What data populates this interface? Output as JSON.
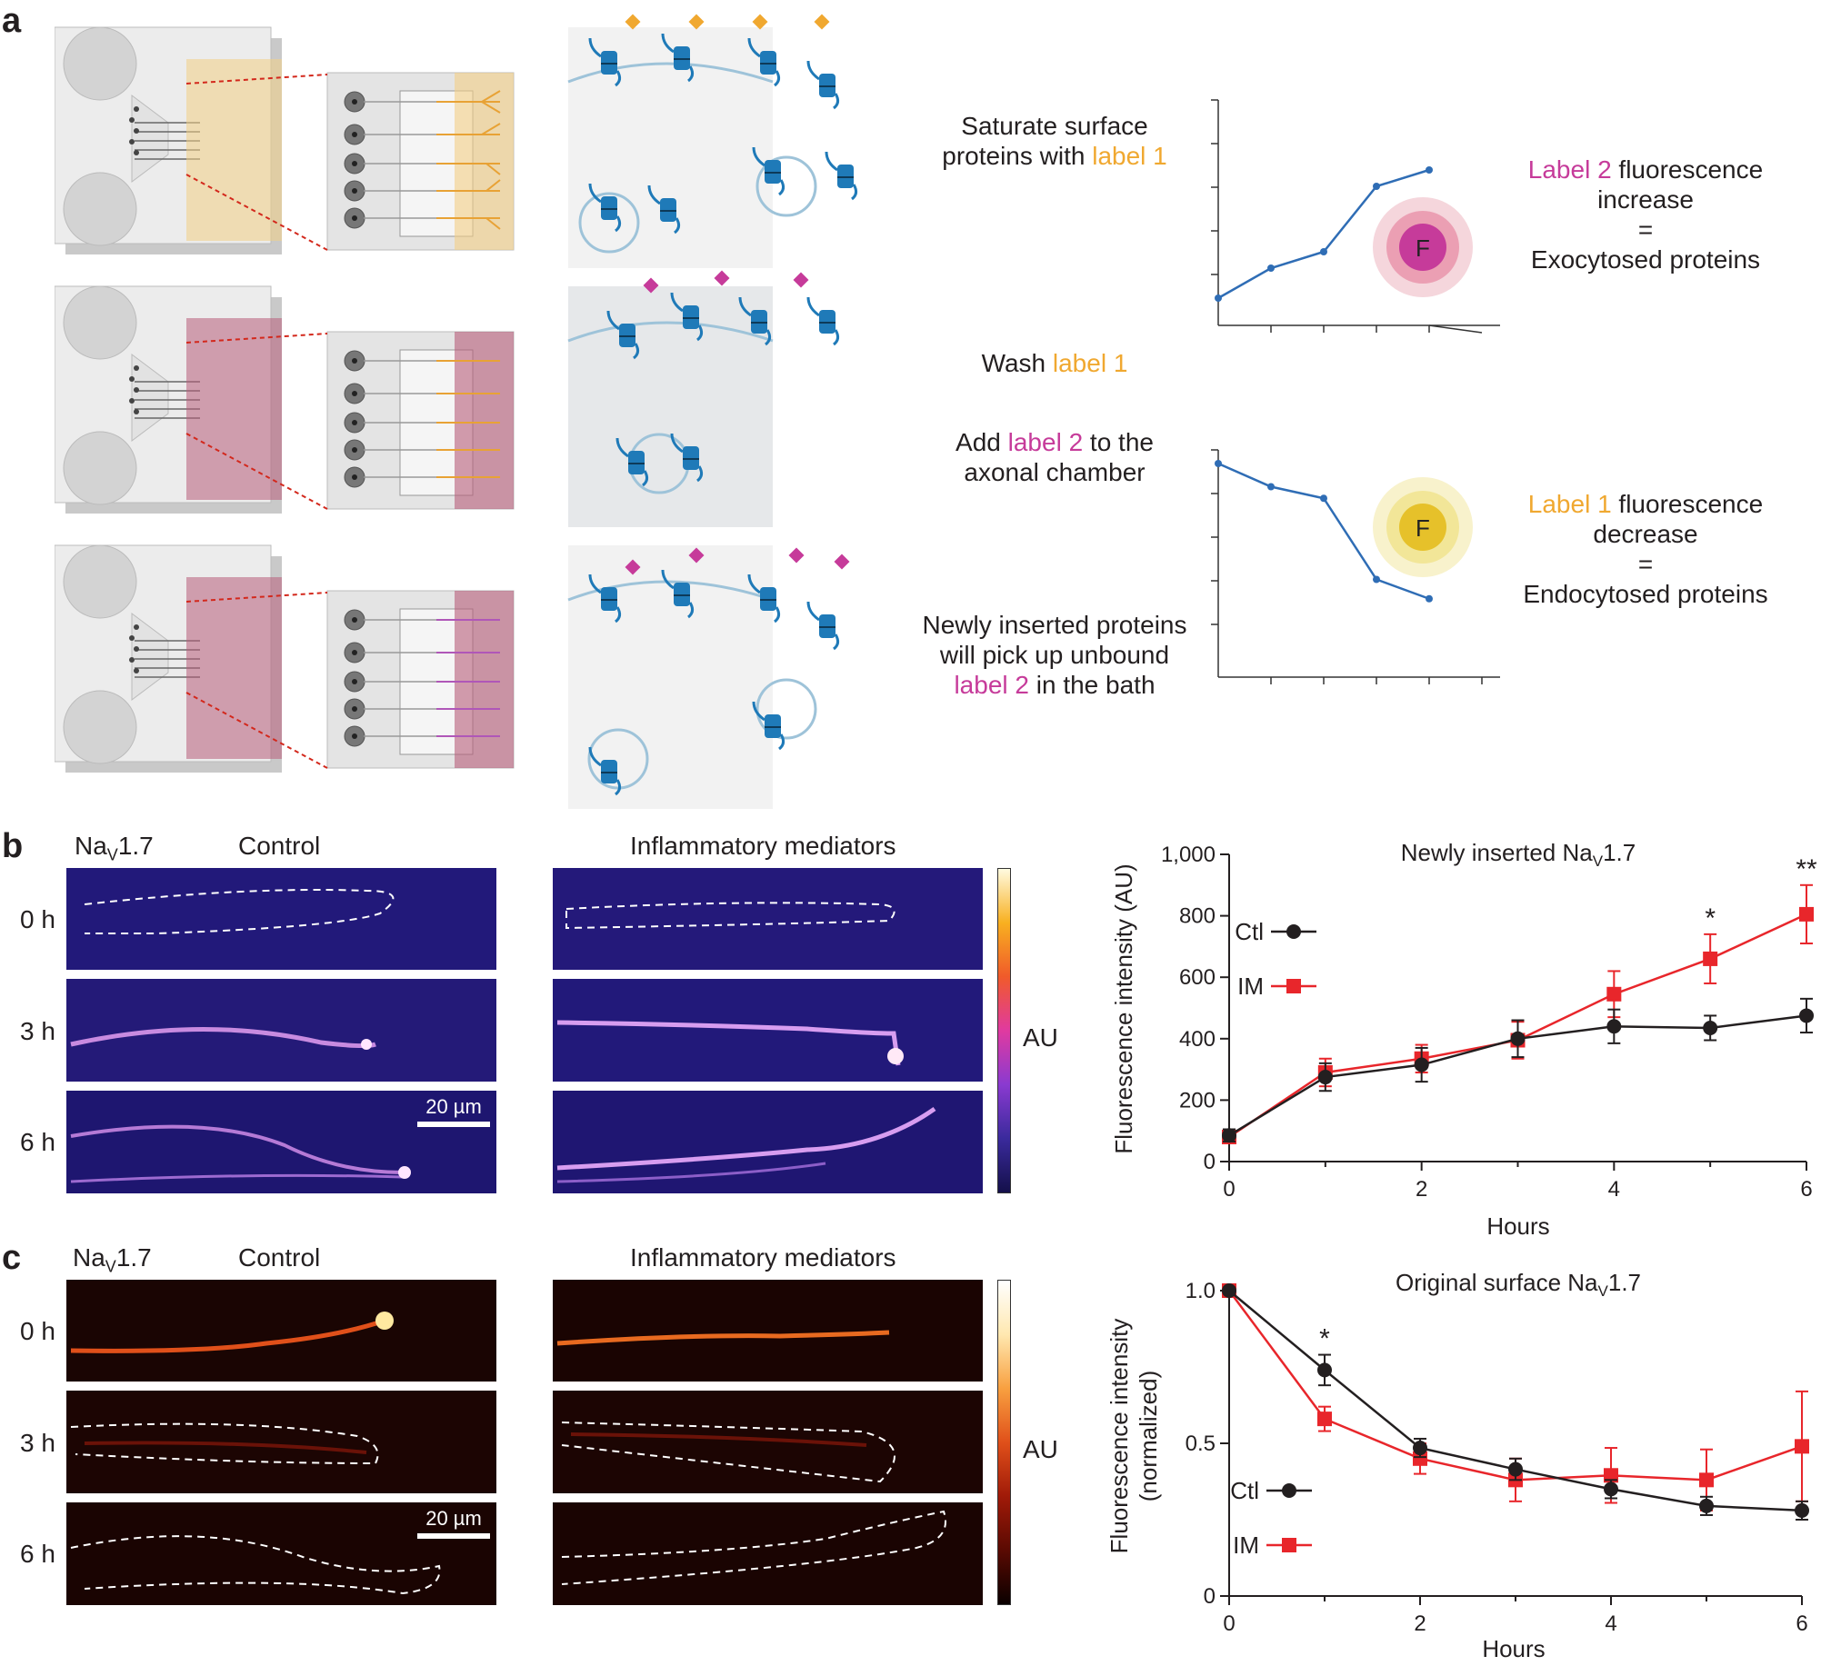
{
  "panels": {
    "a": "a",
    "b": "b",
    "c": "c"
  },
  "panel_a": {
    "step1_lines": [
      "Saturate surface",
      "proteins with "
    ],
    "step1_label": "label 1",
    "step2_prefix": "Wash ",
    "step2_label": "label 1",
    "step3_prefix": "Add ",
    "step3_label": "label 2",
    "step3_suffix": " to the",
    "step3_line2": "axonal chamber",
    "step4_lines": [
      "Newly inserted proteins",
      "will pick up unbound"
    ],
    "step4_label": "label 2",
    "step4_suffix": " in the bath",
    "exo_label": "Label 2",
    "exo_line1_suffix": " fluorescence",
    "exo_line2": "increase",
    "exo_eq": "=",
    "exo_line3": "Exocytosed proteins",
    "endo_label": "Label 1",
    "endo_line1_suffix": " fluorescence",
    "endo_line2": "decrease",
    "endo_eq": "=",
    "endo_line3": "Endocytosed proteins",
    "f_letter_1": "F",
    "f_letter_2": "F",
    "schematic_increase": [
      0,
      1,
      2,
      5,
      6
    ],
    "schematic_decrease": [
      0,
      1,
      2,
      5,
      6
    ]
  },
  "panel_b": {
    "nav": "Na",
    "nav_sub": "V",
    "nav_end": "1.7",
    "control": "Control",
    "im": "Inflammatory mediators",
    "rows": [
      "0 h",
      "3 h",
      "6 h"
    ],
    "scale": "20 µm",
    "cbar_label": "AU"
  },
  "panel_c": {
    "nav": "Na",
    "nav_sub": "V",
    "nav_end": "1.7",
    "control": "Control",
    "im": "Inflammatory mediators",
    "rows": [
      "0 h",
      "3 h",
      "6 h"
    ],
    "scale": "20 µm",
    "cbar_label": "AU"
  },
  "colors": {
    "ctl": "#231f20",
    "im": "#e8262b",
    "schematic_line": "#2f6db5",
    "label1": "#f0a830",
    "label2": "#c63b9a"
  },
  "chart_data": [
    {
      "type": "line",
      "title": "Newly inserted Na",
      "title_sub": "V",
      "title_end": "1.7",
      "xlabel": "Hours",
      "ylabel": "Fluorescence intensity (AU)",
      "xlim": [
        0,
        6
      ],
      "ylim": [
        0,
        1000
      ],
      "xticks": [
        0,
        2,
        4,
        6
      ],
      "yticks": [
        0,
        200,
        400,
        600,
        800,
        1000
      ],
      "ytick_labels": [
        "0",
        "200",
        "400",
        "600",
        "800",
        "1,000"
      ],
      "x": [
        0,
        1,
        2,
        3,
        4,
        5,
        6
      ],
      "series": [
        {
          "name": "Ctl",
          "marker": "circle",
          "values": [
            85,
            275,
            315,
            400,
            440,
            435,
            475
          ],
          "errors": [
            20,
            45,
            55,
            60,
            55,
            40,
            55
          ]
        },
        {
          "name": "IM",
          "marker": "square",
          "values": [
            80,
            290,
            335,
            395,
            545,
            660,
            805
          ],
          "errors": [
            20,
            45,
            45,
            60,
            75,
            80,
            95
          ]
        }
      ],
      "annotations": [
        {
          "x": 5,
          "text": "*"
        },
        {
          "x": 6,
          "text": "**"
        }
      ]
    },
    {
      "type": "line",
      "title": "Original surface Na",
      "title_sub": "V",
      "title_end": "1.7",
      "xlabel": "Hours",
      "ylabel_lines": [
        "Fluorescence intensity",
        "(normalized)"
      ],
      "xlim": [
        0,
        6
      ],
      "ylim": [
        0,
        1.0
      ],
      "xticks": [
        0,
        2,
        4,
        6
      ],
      "yticks": [
        0,
        0.5,
        1.0
      ],
      "ytick_labels": [
        "0",
        "0.5",
        "1.0"
      ],
      "x": [
        0,
        1,
        2,
        3,
        4,
        5,
        6
      ],
      "series": [
        {
          "name": "Ctl",
          "marker": "circle",
          "values": [
            1.0,
            0.74,
            0.485,
            0.415,
            0.35,
            0.295,
            0.28
          ],
          "errors": [
            0.01,
            0.05,
            0.03,
            0.035,
            0.03,
            0.03,
            0.03
          ]
        },
        {
          "name": "IM",
          "marker": "square",
          "values": [
            1.0,
            0.58,
            0.45,
            0.38,
            0.395,
            0.38,
            0.49
          ],
          "errors": [
            0.01,
            0.04,
            0.05,
            0.07,
            0.09,
            0.1,
            0.18
          ]
        }
      ],
      "annotations": [
        {
          "x": 1,
          "text": "*"
        }
      ]
    }
  ]
}
